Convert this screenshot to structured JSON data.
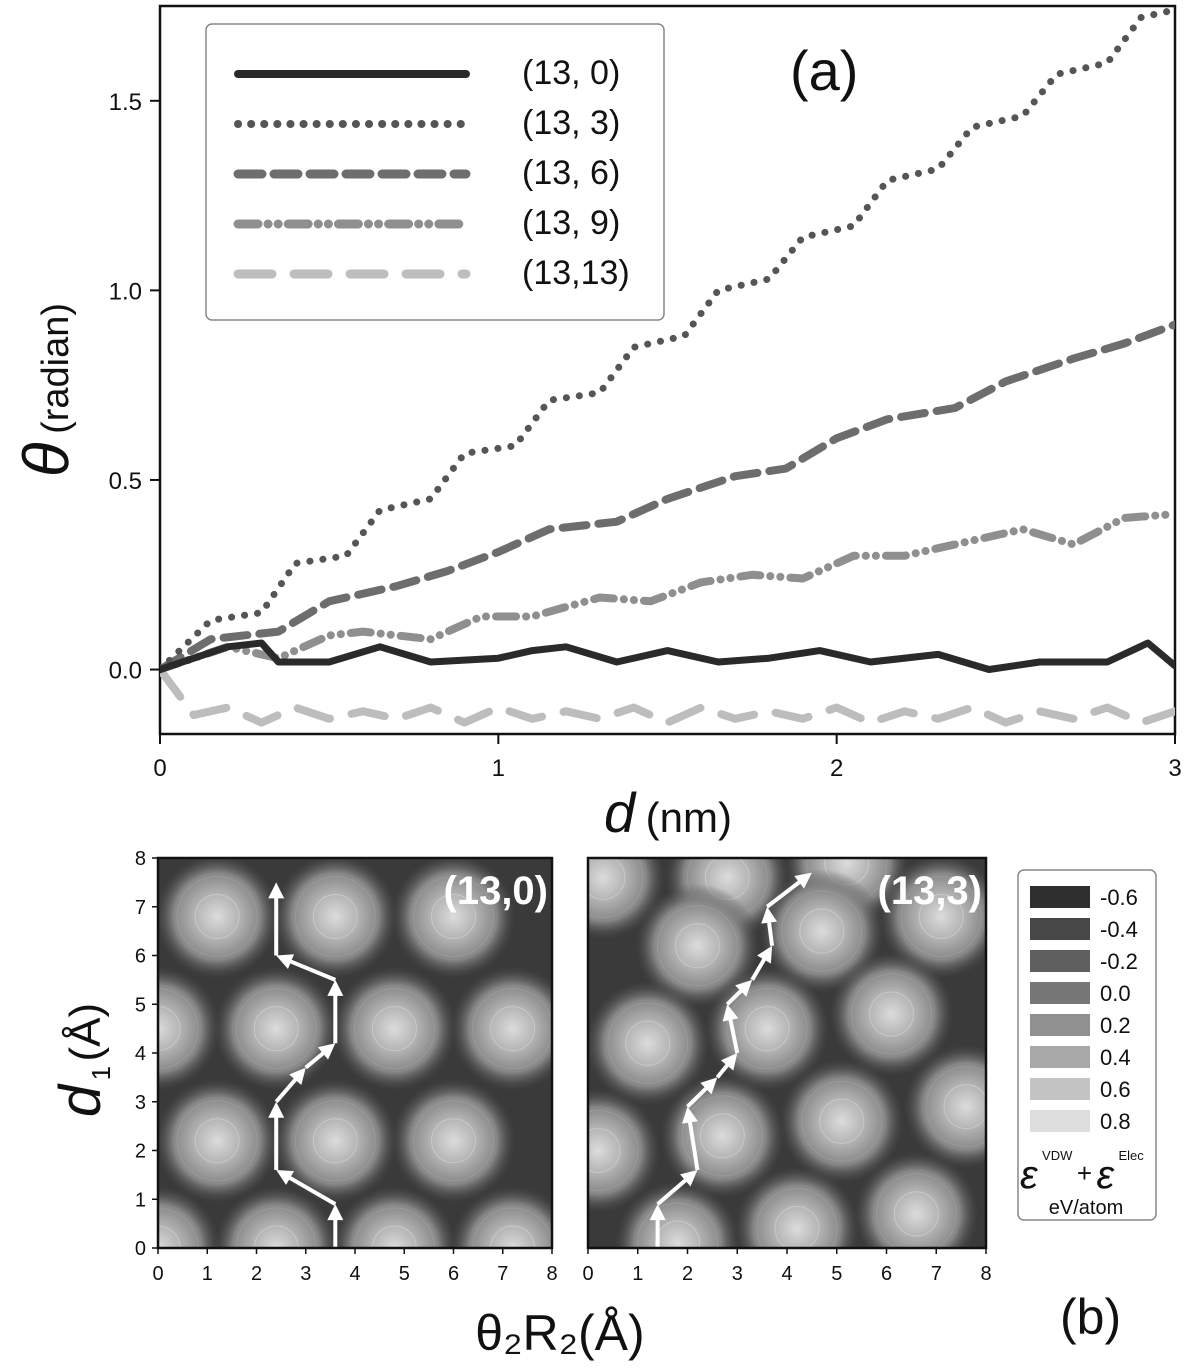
{
  "chart_data": [
    {
      "type": "line",
      "panel_label": "(a)",
      "xlabel_var": "d",
      "xlabel_unit": "(nm)",
      "ylabel_var": "θ",
      "ylabel_unit": "(radian)",
      "xlim": [
        0,
        3
      ],
      "ylim": [
        -0.17,
        1.75
      ],
      "xticks": [
        "0",
        "1",
        "2",
        "3"
      ],
      "yticks": [
        "0.0",
        "0.5",
        "1.0",
        "1.5"
      ],
      "xtick_values": [
        0,
        1,
        2,
        3
      ],
      "ytick_values": [
        0,
        0.5,
        1.0,
        1.5
      ],
      "legend_position": "top-left",
      "series": [
        {
          "name": "(13, 0)",
          "color": "#2a2a2a",
          "dash": "solid",
          "x": [
            0,
            0.1,
            0.2,
            0.3,
            0.35,
            0.5,
            0.65,
            0.8,
            1.0,
            1.1,
            1.2,
            1.35,
            1.5,
            1.65,
            1.8,
            1.95,
            2.1,
            2.3,
            2.45,
            2.6,
            2.8,
            2.92,
            3.0
          ],
          "y": [
            0,
            0.03,
            0.06,
            0.07,
            0.02,
            0.02,
            0.06,
            0.02,
            0.03,
            0.05,
            0.06,
            0.02,
            0.05,
            0.02,
            0.03,
            0.05,
            0.02,
            0.04,
            0.0,
            0.02,
            0.02,
            0.07,
            0.01
          ]
        },
        {
          "name": "(13, 3)",
          "color": "#555555",
          "dash": "dotted",
          "x": [
            0,
            0.15,
            0.3,
            0.4,
            0.55,
            0.65,
            0.8,
            0.9,
            1.05,
            1.15,
            1.3,
            1.4,
            1.55,
            1.65,
            1.8,
            1.9,
            2.05,
            2.15,
            2.3,
            2.4,
            2.55,
            2.65,
            2.8,
            2.9,
            3.0
          ],
          "y": [
            0,
            0.13,
            0.15,
            0.28,
            0.3,
            0.42,
            0.45,
            0.57,
            0.59,
            0.71,
            0.73,
            0.85,
            0.88,
            1.0,
            1.03,
            1.14,
            1.17,
            1.29,
            1.32,
            1.43,
            1.46,
            1.57,
            1.6,
            1.72,
            1.74
          ]
        },
        {
          "name": "(13, 6)",
          "color": "#6d6d6d",
          "dash": "dashed",
          "x": [
            0,
            0.15,
            0.35,
            0.5,
            0.7,
            0.85,
            1.0,
            1.15,
            1.35,
            1.5,
            1.7,
            1.85,
            2.0,
            2.15,
            2.35,
            2.5,
            2.7,
            2.85,
            3.0
          ],
          "y": [
            0,
            0.08,
            0.1,
            0.18,
            0.22,
            0.26,
            0.31,
            0.37,
            0.39,
            0.45,
            0.51,
            0.53,
            0.61,
            0.66,
            0.69,
            0.76,
            0.82,
            0.86,
            0.91
          ]
        },
        {
          "name": "(13, 9)",
          "color": "#8f8f8f",
          "dash": "dash-dot-dot",
          "x": [
            0,
            0.2,
            0.35,
            0.5,
            0.6,
            0.8,
            0.95,
            1.1,
            1.3,
            1.45,
            1.6,
            1.75,
            1.9,
            2.05,
            2.2,
            2.4,
            2.55,
            2.7,
            2.85,
            3.0
          ],
          "y": [
            0,
            0.06,
            0.03,
            0.09,
            0.1,
            0.08,
            0.14,
            0.14,
            0.19,
            0.18,
            0.23,
            0.25,
            0.24,
            0.3,
            0.3,
            0.34,
            0.37,
            0.33,
            0.4,
            0.41
          ]
        },
        {
          "name": "(13,13)",
          "color": "#bdbdbd",
          "dash": "long-dashed",
          "x": [
            0,
            0.1,
            0.2,
            0.3,
            0.4,
            0.5,
            0.6,
            0.7,
            0.8,
            0.9,
            1.0,
            1.1,
            1.2,
            1.3,
            1.4,
            1.5,
            1.6,
            1.7,
            1.8,
            1.9,
            2.0,
            2.1,
            2.2,
            2.3,
            2.4,
            2.5,
            2.6,
            2.7,
            2.8,
            2.9,
            3.0
          ],
          "y": [
            0,
            -0.12,
            -0.1,
            -0.14,
            -0.1,
            -0.13,
            -0.11,
            -0.13,
            -0.1,
            -0.14,
            -0.1,
            -0.13,
            -0.11,
            -0.13,
            -0.1,
            -0.14,
            -0.1,
            -0.13,
            -0.11,
            -0.13,
            -0.1,
            -0.14,
            -0.11,
            -0.13,
            -0.1,
            -0.14,
            -0.11,
            -0.13,
            -0.1,
            -0.14,
            -0.11
          ]
        }
      ]
    },
    {
      "type": "heatmap",
      "panel_label": "(b)",
      "xlabel": "θ₂R₂(Å)",
      "ylabel_var": "d",
      "ylabel_sub": "1",
      "ylabel_unit": "(Å)",
      "xlim": [
        0,
        8
      ],
      "ylim": [
        0,
        8
      ],
      "xticks": [
        "0",
        "1",
        "2",
        "3",
        "4",
        "5",
        "6",
        "7",
        "8"
      ],
      "yticks": [
        "0",
        "1",
        "2",
        "3",
        "4",
        "5",
        "6",
        "7",
        "8"
      ],
      "maps": [
        {
          "title": "(13,0)",
          "maxima": [
            [
              1.2,
              6.8
            ],
            [
              3.6,
              6.8
            ],
            [
              6.0,
              6.8
            ],
            [
              0.0,
              4.5
            ],
            [
              2.4,
              4.5
            ],
            [
              4.8,
              4.5
            ],
            [
              7.2,
              4.5
            ],
            [
              1.2,
              2.2
            ],
            [
              3.6,
              2.2
            ],
            [
              6.0,
              2.2
            ],
            [
              0.0,
              0.0
            ],
            [
              2.4,
              0.0
            ],
            [
              4.8,
              0.0
            ],
            [
              7.2,
              0.0
            ]
          ],
          "path": [
            [
              3.6,
              0.0
            ],
            [
              3.6,
              0.9
            ],
            [
              2.4,
              1.6
            ],
            [
              2.4,
              3.0
            ],
            [
              3.0,
              3.7
            ],
            [
              3.6,
              4.2
            ],
            [
              3.6,
              5.5
            ],
            [
              2.4,
              6.0
            ],
            [
              2.4,
              7.5
            ]
          ]
        },
        {
          "title": "(13,3)",
          "maxima": [
            [
              0.3,
              7.6
            ],
            [
              2.8,
              7.6
            ],
            [
              5.2,
              7.9
            ],
            [
              2.2,
              6.2
            ],
            [
              4.7,
              6.5
            ],
            [
              7.1,
              6.8
            ],
            [
              1.2,
              4.2
            ],
            [
              3.6,
              4.5
            ],
            [
              6.1,
              4.8
            ],
            [
              0.2,
              2.0
            ],
            [
              2.7,
              2.3
            ],
            [
              5.1,
              2.6
            ],
            [
              7.6,
              2.9
            ],
            [
              1.8,
              0.1
            ],
            [
              4.2,
              0.4
            ],
            [
              6.6,
              0.7
            ]
          ],
          "path": [
            [
              1.4,
              0.0
            ],
            [
              1.4,
              0.9
            ],
            [
              2.2,
              1.6
            ],
            [
              2.0,
              2.9
            ],
            [
              2.6,
              3.5
            ],
            [
              3.0,
              4.0
            ],
            [
              2.8,
              5.0
            ],
            [
              3.3,
              5.5
            ],
            [
              3.7,
              6.2
            ],
            [
              3.6,
              7.0
            ],
            [
              4.5,
              7.7
            ]
          ]
        }
      ],
      "colorbar": {
        "values": [
          "-0.6",
          "-0.4",
          "-0.2",
          "0.0",
          "0.2",
          "0.4",
          "0.6",
          "0.8"
        ],
        "colors": [
          "#2f2f2f",
          "#474747",
          "#5f5f5f",
          "#777777",
          "#909090",
          "#a9a9a9",
          "#c4c4c4",
          "#dedede"
        ],
        "label_var1": "ε",
        "label_sup1": "VDW",
        "label_plus": "+",
        "label_var2": "ε",
        "label_sup2": "Elec",
        "units": "eV/atom"
      }
    }
  ]
}
